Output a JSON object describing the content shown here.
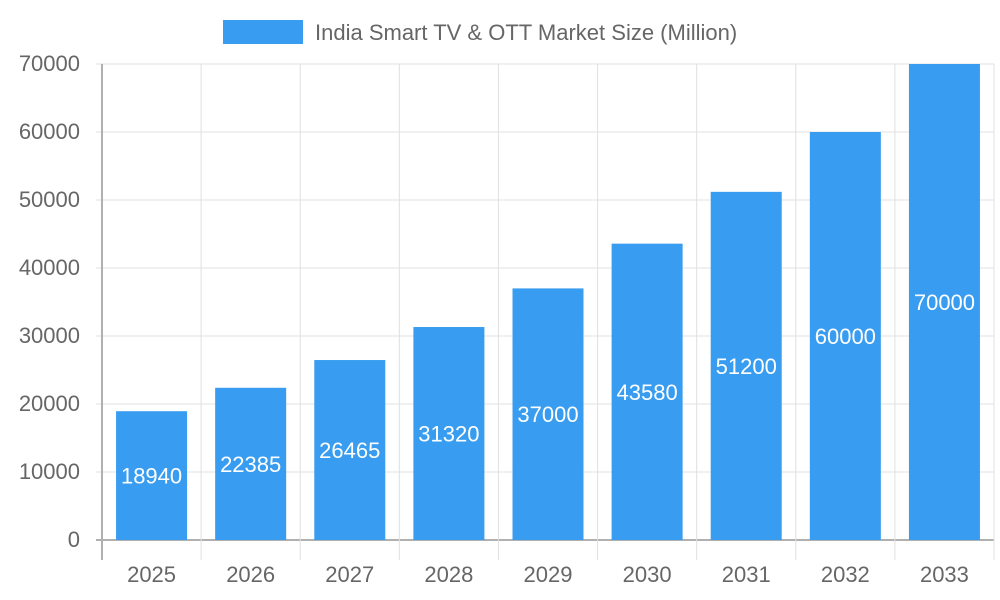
{
  "chart_data": {
    "type": "bar",
    "title": "",
    "xlabel": "",
    "ylabel": "",
    "categories": [
      "2025",
      "2026",
      "2027",
      "2028",
      "2029",
      "2030",
      "2031",
      "2032",
      "2033"
    ],
    "series": [
      {
        "name": "India Smart TV & OTT Market Size (Million)",
        "values": [
          18940,
          22385,
          26465,
          31320,
          37000,
          43580,
          51200,
          60000,
          70000
        ],
        "color": "#389CF0"
      }
    ],
    "ylim": [
      0,
      70000
    ],
    "yticks": [
      0,
      10000,
      20000,
      30000,
      40000,
      50000,
      60000,
      70000
    ],
    "grid": true,
    "legend": "top-center",
    "data_labels": true
  }
}
